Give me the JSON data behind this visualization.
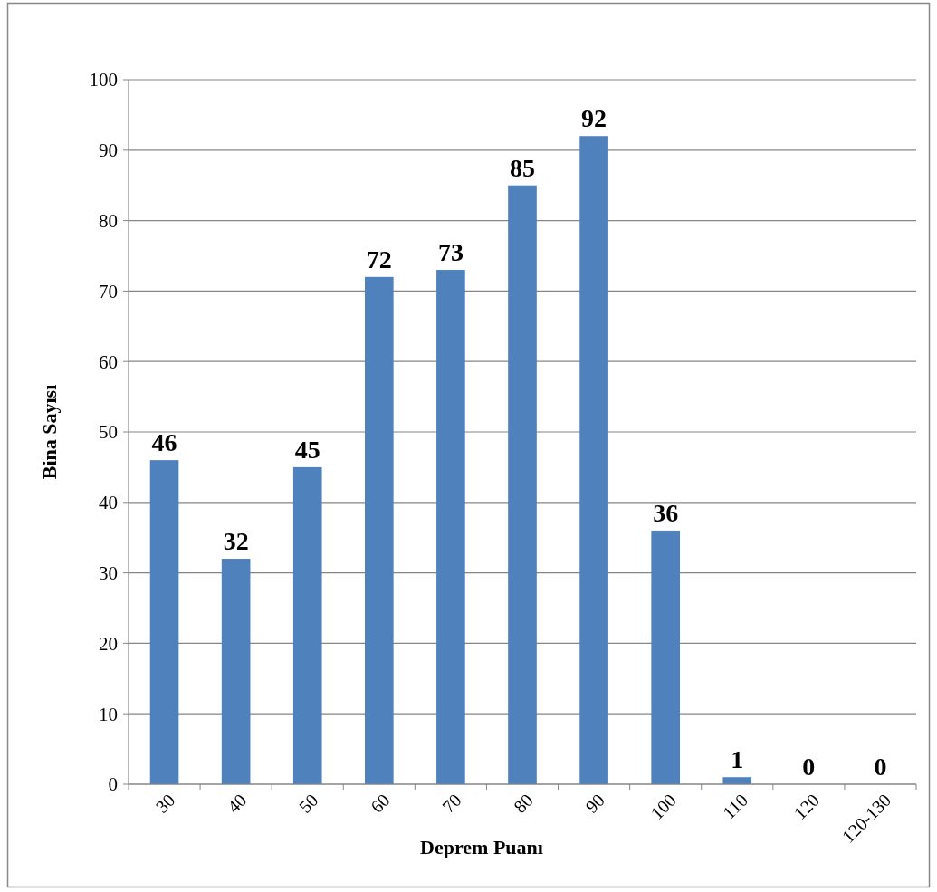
{
  "chart_data": {
    "type": "bar",
    "xlabel": "Deprem Puanı",
    "ylabel": "Bina Sayısı",
    "categories": [
      "30",
      "40",
      "50",
      "60",
      "70",
      "80",
      "90",
      "100",
      "110",
      "120",
      "120-130"
    ],
    "values": [
      46,
      32,
      45,
      72,
      73,
      85,
      92,
      36,
      1,
      0,
      0
    ],
    "color": "#4f81bd",
    "ylim": [
      0,
      100
    ],
    "yticks": [
      0,
      10,
      20,
      30,
      40,
      50,
      60,
      70,
      80,
      90,
      100
    ],
    "grid": "y",
    "data_labels": true
  }
}
